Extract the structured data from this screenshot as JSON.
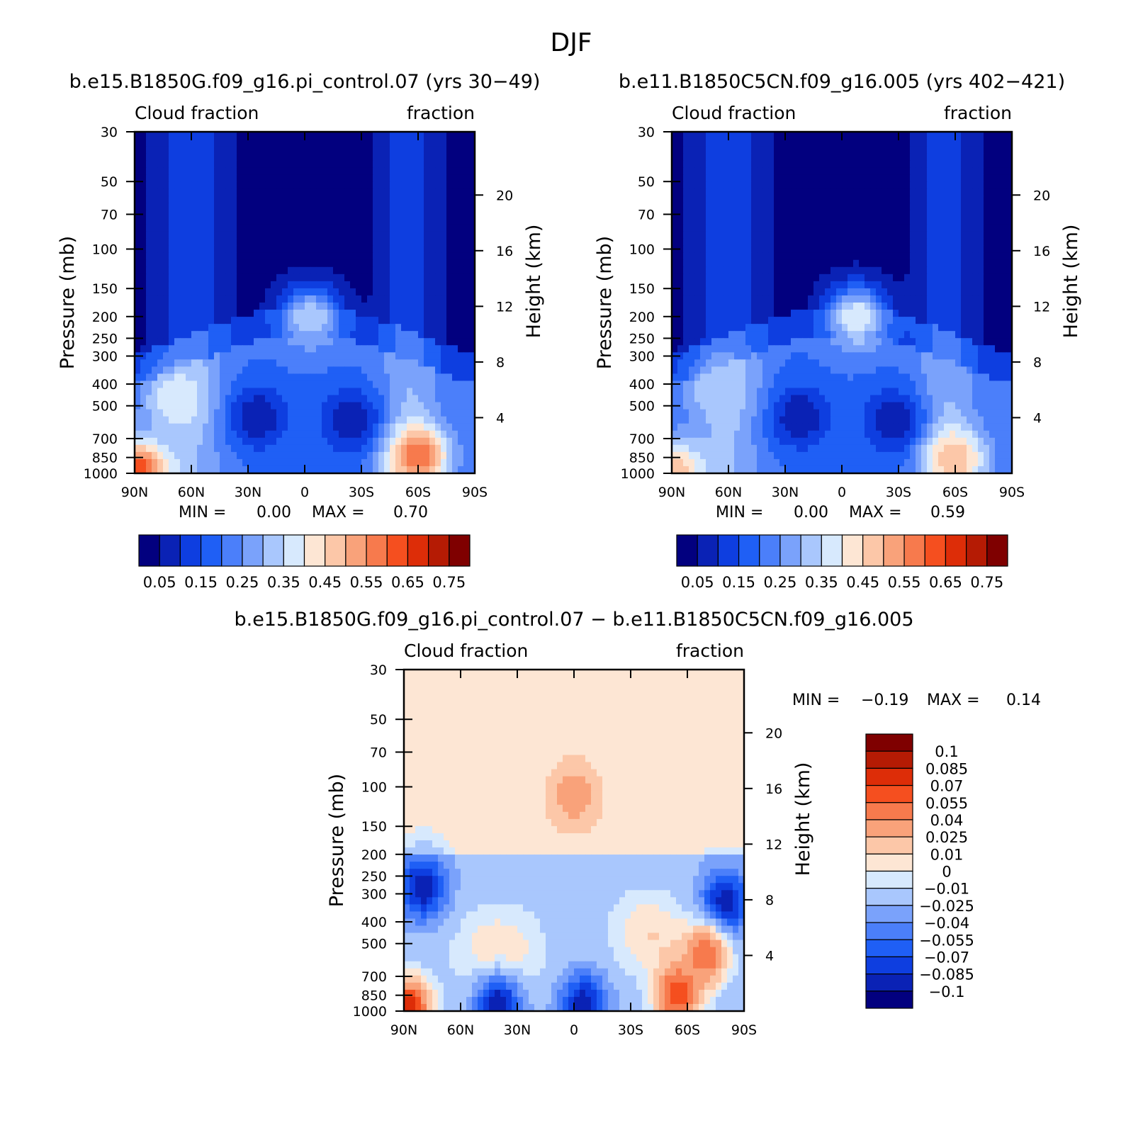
{
  "figure_title": "DJF",
  "chart_data": [
    {
      "type": "heatmap",
      "title": "b.e15.B1850G.f09_g16.pi_control.07 (yrs 30−49)",
      "left_label": "Cloud fraction",
      "right_label": "fraction",
      "xlabel": "",
      "ylabel": "Pressure (mb)",
      "y2label": "Height (km)",
      "x_ticks": [
        "90N",
        "60N",
        "30N",
        "0",
        "30S",
        "60S",
        "90S"
      ],
      "y_ticks": [
        "30",
        "50",
        "70",
        "100",
        "150",
        "200",
        "250",
        "300",
        "400",
        "500",
        "700",
        "850",
        "1000"
      ],
      "y2_ticks": [
        "20",
        "16",
        "12",
        "8",
        "4"
      ],
      "xlim": [
        90,
        -90
      ],
      "ylim": [
        1000,
        30
      ],
      "min_label": "MIN =",
      "min_value": "0.00",
      "max_label": "MAX =",
      "max_value": "0.70",
      "colorbar": {
        "levels": [
          0.05,
          0.1,
          0.15,
          0.2,
          0.25,
          0.3,
          0.35,
          0.4,
          0.45,
          0.5,
          0.55,
          0.6,
          0.65,
          0.7,
          0.75
        ],
        "labels": [
          "0.05",
          "0.15",
          "0.25",
          "0.35",
          "0.45",
          "0.55",
          "0.65",
          "0.75"
        ],
        "colors": [
          "#02007f",
          "#0a22b5",
          "#0e3ee0",
          "#1f5ff5",
          "#4b7ffa",
          "#7aa2fb",
          "#a9c7fd",
          "#d7e9fd",
          "#fde6d4",
          "#fcc7a8",
          "#f9a27a",
          "#f77a4d",
          "#f54f1f",
          "#dd2d08",
          "#b51b04",
          "#7f0000"
        ]
      },
      "features": [
        {
          "lat": 25,
          "p": 560,
          "value": 0.05
        },
        {
          "lat": -25,
          "p": 590,
          "value": 0.05
        },
        {
          "lat": -3,
          "p": 200,
          "value": 0.35
        },
        {
          "lat": -60,
          "p": 840,
          "value": 0.6
        },
        {
          "lat": 68,
          "p": 470,
          "value": 0.4
        },
        {
          "lat": 88,
          "p": 990,
          "value": 0.65
        }
      ]
    },
    {
      "type": "heatmap",
      "title": "b.e11.B1850C5CN.f09_g16.005 (yrs 402−421)",
      "left_label": "Cloud fraction",
      "right_label": "fraction",
      "xlabel": "",
      "ylabel": "Pressure (mb)",
      "y2label": "Height (km)",
      "x_ticks": [
        "90N",
        "60N",
        "30N",
        "0",
        "30S",
        "60S",
        "90S"
      ],
      "y_ticks": [
        "30",
        "50",
        "70",
        "100",
        "150",
        "200",
        "250",
        "300",
        "400",
        "500",
        "700",
        "850",
        "1000"
      ],
      "y2_ticks": [
        "20",
        "16",
        "12",
        "8",
        "4"
      ],
      "xlim": [
        90,
        -90
      ],
      "ylim": [
        1000,
        30
      ],
      "min_label": "MIN =",
      "min_value": "0.00",
      "max_label": "MAX =",
      "max_value": "0.59",
      "colorbar": {
        "levels": [
          0.05,
          0.1,
          0.15,
          0.2,
          0.25,
          0.3,
          0.35,
          0.4,
          0.45,
          0.5,
          0.55,
          0.6,
          0.65,
          0.7,
          0.75
        ],
        "labels": [
          "0.05",
          "0.15",
          "0.25",
          "0.35",
          "0.45",
          "0.55",
          "0.65",
          "0.75"
        ],
        "colors": [
          "#02007f",
          "#0a22b5",
          "#0e3ee0",
          "#1f5ff5",
          "#4b7ffa",
          "#7aa2fb",
          "#a9c7fd",
          "#d7e9fd",
          "#fde6d4",
          "#fcc7a8",
          "#f9a27a",
          "#f77a4d",
          "#f54f1f",
          "#dd2d08",
          "#b51b04",
          "#7f0000"
        ]
      },
      "features": [
        {
          "lat": 22,
          "p": 560,
          "value": 0.05
        },
        {
          "lat": -28,
          "p": 590,
          "value": 0.05
        },
        {
          "lat": -8,
          "p": 200,
          "value": 0.4
        },
        {
          "lat": -60,
          "p": 860,
          "value": 0.5
        },
        {
          "lat": 65,
          "p": 420,
          "value": 0.35
        },
        {
          "lat": 88,
          "p": 990,
          "value": 0.5
        }
      ]
    },
    {
      "type": "heatmap",
      "title": "b.e15.B1850G.f09_g16.pi_control.07 − b.e11.B1850C5CN.f09_g16.005",
      "left_label": "Cloud fraction",
      "right_label": "fraction",
      "xlabel": "",
      "ylabel": "Pressure (mb)",
      "y2label": "Height (km)",
      "x_ticks": [
        "90N",
        "60N",
        "30N",
        "0",
        "30S",
        "60S",
        "90S"
      ],
      "y_ticks": [
        "30",
        "50",
        "70",
        "100",
        "150",
        "200",
        "250",
        "300",
        "400",
        "500",
        "700",
        "850",
        "1000"
      ],
      "y2_ticks": [
        "20",
        "16",
        "12",
        "8",
        "4"
      ],
      "xlim": [
        90,
        -90
      ],
      "ylim": [
        1000,
        30
      ],
      "min_label": "MIN =",
      "min_value": "−0.19",
      "max_label": "MAX =",
      "max_value": "0.14",
      "colorbar": {
        "levels": [
          -0.1,
          -0.085,
          -0.07,
          -0.055,
          -0.04,
          -0.025,
          -0.01,
          0,
          0.01,
          0.025,
          0.04,
          0.055,
          0.07,
          0.085,
          0.1
        ],
        "labels": [
          "0.1",
          "0.085",
          "0.07",
          "0.055",
          "0.04",
          "0.025",
          "0.01",
          "0",
          "−0.01",
          "−0.025",
          "−0.04",
          "−0.055",
          "−0.07",
          "−0.085",
          "−0.1"
        ],
        "colors": [
          "#02007f",
          "#0a22b5",
          "#0e3ee0",
          "#1f5ff5",
          "#4b7ffa",
          "#7aa2fb",
          "#a9c7fd",
          "#d7e9fd",
          "#fde6d4",
          "#fcc7a8",
          "#f9a27a",
          "#f77a4d",
          "#f54f1f",
          "#dd2d08",
          "#b51b04",
          "#7f0000"
        ]
      },
      "features": [
        {
          "lat": -80,
          "p": 330,
          "value": -0.1
        },
        {
          "lat": 80,
          "p": 280,
          "value": -0.1
        },
        {
          "lat": 40,
          "p": 950,
          "value": -0.1
        },
        {
          "lat": -5,
          "p": 950,
          "value": -0.1
        },
        {
          "lat": -55,
          "p": 840,
          "value": 0.07
        },
        {
          "lat": -70,
          "p": 560,
          "value": 0.055
        },
        {
          "lat": 0,
          "p": 110,
          "value": 0.04
        },
        {
          "lat": 88,
          "p": 990,
          "value": 0.085
        }
      ]
    }
  ]
}
